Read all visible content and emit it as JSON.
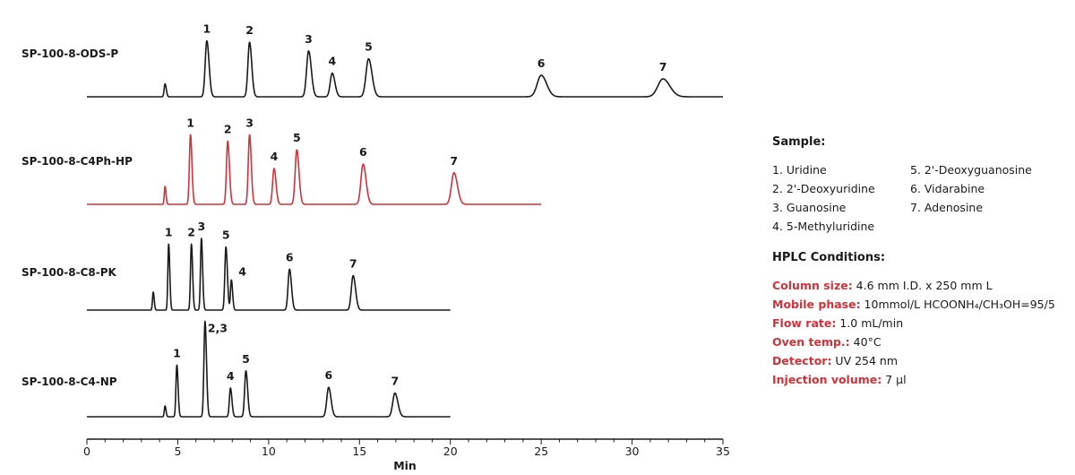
{
  "chart_data": {
    "type": "line",
    "xlabel": "Min",
    "xlim": [
      0,
      35
    ],
    "xticks": [
      0,
      5,
      10,
      15,
      20,
      25,
      30,
      35
    ],
    "colors": {
      "black": "#1a1a1a",
      "red": "#d0323a"
    },
    "series": [
      {
        "name": "SP-100-8-ODS-P",
        "color": "#1a1a1a",
        "x_end": 35,
        "peaks": [
          {
            "label": "",
            "t": 4.3,
            "h": 0.18,
            "w": 0.05
          },
          {
            "label": "1",
            "t": 6.6,
            "h": 0.78,
            "w": 0.09
          },
          {
            "label": "2",
            "t": 8.95,
            "h": 0.76,
            "w": 0.09
          },
          {
            "label": "3",
            "t": 12.2,
            "h": 0.64,
            "w": 0.11
          },
          {
            "label": "4",
            "t": 13.5,
            "h": 0.33,
            "w": 0.11
          },
          {
            "label": "5",
            "t": 15.5,
            "h": 0.53,
            "w": 0.14
          },
          {
            "label": "6",
            "t": 25.0,
            "h": 0.3,
            "w": 0.22
          },
          {
            "label": "7",
            "t": 31.7,
            "h": 0.25,
            "w": 0.28
          }
        ]
      },
      {
        "name": "SP-100-8-C4Ph-HP",
        "color": "#d0323a",
        "x_end": 25,
        "peaks": [
          {
            "label": "",
            "t": 4.3,
            "h": 0.25,
            "w": 0.04
          },
          {
            "label": "1",
            "t": 5.7,
            "h": 0.97,
            "w": 0.06
          },
          {
            "label": "2",
            "t": 7.75,
            "h": 0.88,
            "w": 0.07
          },
          {
            "label": "3",
            "t": 8.95,
            "h": 0.97,
            "w": 0.07
          },
          {
            "label": "4",
            "t": 10.3,
            "h": 0.5,
            "w": 0.08
          },
          {
            "label": "5",
            "t": 11.55,
            "h": 0.76,
            "w": 0.09
          },
          {
            "label": "6",
            "t": 15.2,
            "h": 0.56,
            "w": 0.12
          },
          {
            "label": "7",
            "t": 20.2,
            "h": 0.44,
            "w": 0.14
          }
        ]
      },
      {
        "name": "SP-100-8-C8-PK",
        "color": "#1a1a1a",
        "x_end": 20,
        "peaks": [
          {
            "label": "",
            "t": 3.65,
            "h": 0.25,
            "w": 0.04
          },
          {
            "label": "1",
            "t": 4.5,
            "h": 0.92,
            "w": 0.045
          },
          {
            "label": "2",
            "t": 5.75,
            "h": 0.92,
            "w": 0.05
          },
          {
            "label": "3",
            "t": 6.3,
            "h": 1.0,
            "w": 0.05
          },
          {
            "label": "5",
            "t": 7.65,
            "h": 0.88,
            "w": 0.06
          },
          {
            "label": "4",
            "t": 7.95,
            "h": 0.42,
            "w": 0.05
          },
          {
            "label": "6",
            "t": 11.15,
            "h": 0.57,
            "w": 0.08
          },
          {
            "label": "7",
            "t": 14.65,
            "h": 0.48,
            "w": 0.1
          }
        ]
      },
      {
        "name": "SP-100-8-C4-NP",
        "color": "#1a1a1a",
        "x_end": 20,
        "peaks": [
          {
            "label": "",
            "t": 4.3,
            "h": 0.15,
            "w": 0.04
          },
          {
            "label": "1",
            "t": 4.95,
            "h": 0.72,
            "w": 0.05
          },
          {
            "label": "2,3",
            "t": 6.5,
            "h": 1.33,
            "w": 0.06
          },
          {
            "label": "4",
            "t": 7.9,
            "h": 0.4,
            "w": 0.06
          },
          {
            "label": "5",
            "t": 8.75,
            "h": 0.64,
            "w": 0.07
          },
          {
            "label": "6",
            "t": 13.3,
            "h": 0.41,
            "w": 0.1
          },
          {
            "label": "7",
            "t": 16.95,
            "h": 0.33,
            "w": 0.12
          }
        ]
      }
    ]
  },
  "legend": {
    "sample_title": "Sample:",
    "samples": [
      "1. Uridine",
      "5. 2'-Deoxyguanosine",
      "2. 2'-Deoxyuridine",
      "6. Vidarabine",
      "3. Guanosine",
      "7. Adenosine",
      "4. 5-Methyluridine"
    ],
    "hplc_title": "HPLC Conditions:",
    "conditions": [
      {
        "key": "Column size:",
        "value": " 4.6 mm I.D. x 250 mm L"
      },
      {
        "key": "Mobile phase:",
        "value": " 10mmol/L HCOONH₄/CH₃OH=95/5"
      },
      {
        "key": "Flow rate:",
        "value": " 1.0 mL/min"
      },
      {
        "key": "Oven temp.:",
        "value": " 40°C"
      },
      {
        "key": "Detector:",
        "value": " UV 254 nm"
      },
      {
        "key": "Injection volume:",
        "value": " 7 μl"
      }
    ]
  }
}
